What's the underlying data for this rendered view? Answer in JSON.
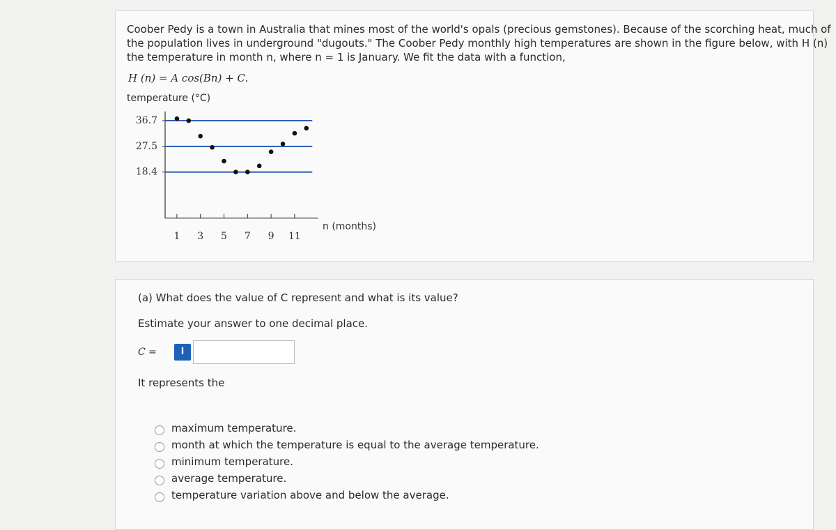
{
  "problem": {
    "intro_lines": [
      "Coober Pedy is a town in Australia that mines most of the world's opals (precious gemstones). Because of the scorching heat, much of",
      "the population lives in underground \"dugouts.\" The Coober Pedy monthly high temperatures are shown in the figure below, with H (n)",
      "the temperature in month n, where n = 1 is January. We fit the data with a function,"
    ],
    "formula": "H (n) = A cos(Bn) + C.",
    "figure": {
      "type": "scatter",
      "y_label": "temperature (°C)",
      "x_label": "n (months)",
      "xlim": [
        0,
        13
      ],
      "ylim": [
        2,
        40
      ],
      "xticks": [
        1,
        3,
        5,
        7,
        9,
        11
      ],
      "yticks": [
        36.7,
        27.5,
        18.4
      ],
      "grid": true,
      "grid_color": "#2f5fb3",
      "point_color": "#111111",
      "x": [
        1,
        2,
        3,
        4,
        5,
        6,
        7,
        8,
        9,
        10,
        11,
        12
      ],
      "values": [
        37.4,
        36.7,
        31.2,
        27.2,
        22.3,
        18.4,
        18.4,
        20.6,
        25.6,
        28.4,
        32.2,
        34.0
      ]
    }
  },
  "question": {
    "prompt": "(a) What does the value of C represent and what is its value?",
    "instruction": "Estimate your answer to one decimal place.",
    "input_label": "C =",
    "info_icon": "i",
    "represents": "It represents the",
    "options": [
      "maximum temperature.",
      "month at which the temperature is equal to the average temperature.",
      "minimum temperature.",
      "average temperature.",
      "temperature variation above and below the average."
    ]
  }
}
